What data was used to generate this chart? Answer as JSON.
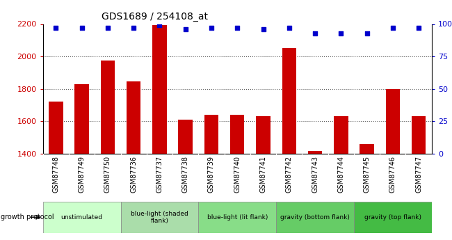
{
  "title": "GDS1689 / 254108_at",
  "samples": [
    "GSM87748",
    "GSM87749",
    "GSM87750",
    "GSM87736",
    "GSM87737",
    "GSM87738",
    "GSM87739",
    "GSM87740",
    "GSM87741",
    "GSM87742",
    "GSM87743",
    "GSM87744",
    "GSM87745",
    "GSM87746",
    "GSM87747"
  ],
  "counts": [
    1720,
    1830,
    1975,
    1845,
    2195,
    1610,
    1640,
    1640,
    1630,
    2050,
    1415,
    1630,
    1460,
    1800,
    1630
  ],
  "percentiles": [
    97,
    97,
    97,
    97,
    99,
    96,
    97,
    97,
    96,
    97,
    93,
    93,
    93,
    97,
    97
  ],
  "ylim_left": [
    1400,
    2200
  ],
  "ylim_right": [
    0,
    100
  ],
  "yticks_left": [
    1400,
    1600,
    1800,
    2000,
    2200
  ],
  "yticks_right": [
    0,
    25,
    50,
    75,
    100
  ],
  "bar_color": "#cc0000",
  "dot_color": "#0000cc",
  "groups": [
    {
      "label": "unstimulated",
      "start": 0,
      "end": 3
    },
    {
      "label": "blue-light (shaded\nflank)",
      "start": 3,
      "end": 6
    },
    {
      "label": "blue-light (lit flank)",
      "start": 6,
      "end": 9
    },
    {
      "label": "gravity (bottom flank)",
      "start": 9,
      "end": 12
    },
    {
      "label": "gravity (top flank)",
      "start": 12,
      "end": 15
    }
  ],
  "group_colors": [
    "#ccffcc",
    "#aaddaa",
    "#88dd88",
    "#66cc66",
    "#44bb44"
  ],
  "xlabel_color": "#cc0000",
  "ylabel_right_color": "#0000cc",
  "xtick_bg": "#d0d0d0",
  "fig_bg": "#ffffff"
}
